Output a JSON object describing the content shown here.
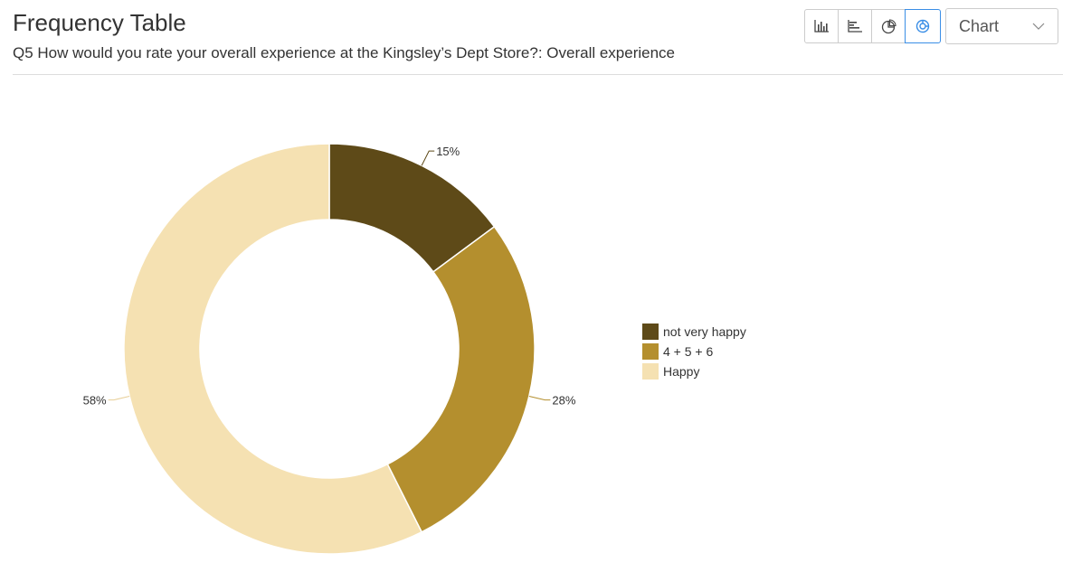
{
  "header": {
    "title": "Frequency Table",
    "subtitle": "Q5 How would you rate your overall experience at the Kingsley’s Dept Store?: Overall experience"
  },
  "toolbar": {
    "buttons": [
      {
        "icon": "column-chart-icon"
      },
      {
        "icon": "bar-chart-icon"
      },
      {
        "icon": "pie-chart-icon"
      },
      {
        "icon": "donut-chart-icon",
        "active": true
      }
    ],
    "select": {
      "value": "Chart"
    }
  },
  "chart_data": {
    "type": "pie",
    "variant": "donut",
    "categories": [
      "not very happy",
      "4 + 5 + 6",
      "Happy"
    ],
    "values": [
      15,
      28,
      58
    ],
    "labels": [
      "15%",
      "28%",
      "58%"
    ],
    "colors": [
      "#5e4a18",
      "#b48f2e",
      "#f5e1b2"
    ],
    "legend": "right"
  }
}
